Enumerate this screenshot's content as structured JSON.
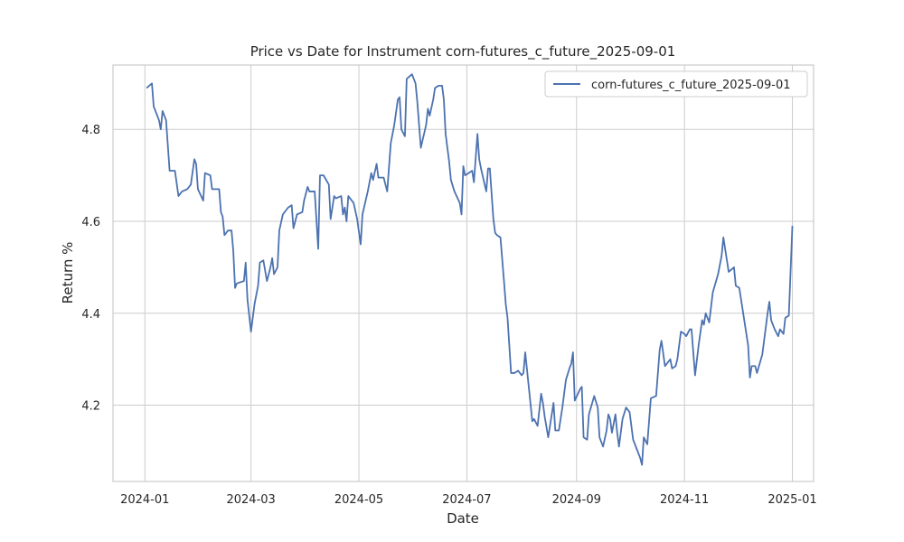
{
  "chart_data": {
    "type": "line",
    "title": "Price vs Date for Instrument corn-futures_c_future_2025-09-01",
    "xlabel": "Date",
    "ylabel": "Return %",
    "x_ticks": [
      "2024-01",
      "2024-03",
      "2024-05",
      "2024-07",
      "2024-09",
      "2024-11",
      "2025-01"
    ],
    "y_ticks": [
      "4.2",
      "4.4",
      "4.6",
      "4.8"
    ],
    "xlim": [
      "2023-12-14",
      "2025-01-13"
    ],
    "ylim": [
      4.034,
      4.94
    ],
    "grid": true,
    "legend_position": "top-right",
    "series": [
      {
        "name": "corn-futures_c_future_2025-09-01",
        "color": "#4c72b0",
        "points": [
          [
            "2024-01-02",
            4.89
          ],
          [
            "2024-01-05",
            4.9
          ],
          [
            "2024-01-06",
            4.85
          ],
          [
            "2024-01-09",
            4.82
          ],
          [
            "2024-01-10",
            4.8
          ],
          [
            "2024-01-11",
            4.84
          ],
          [
            "2024-01-13",
            4.82
          ],
          [
            "2024-01-15",
            4.71
          ],
          [
            "2024-01-18",
            4.71
          ],
          [
            "2024-01-20",
            4.655
          ],
          [
            "2024-01-22",
            4.665
          ],
          [
            "2024-01-25",
            4.67
          ],
          [
            "2024-01-27",
            4.68
          ],
          [
            "2024-01-29",
            4.735
          ],
          [
            "2024-01-30",
            4.725
          ],
          [
            "2024-01-31",
            4.67
          ],
          [
            "2024-02-03",
            4.645
          ],
          [
            "2024-02-04",
            4.705
          ],
          [
            "2024-02-07",
            4.7
          ],
          [
            "2024-02-08",
            4.67
          ],
          [
            "2024-02-12",
            4.67
          ],
          [
            "2024-02-13",
            4.62
          ],
          [
            "2024-02-14",
            4.61
          ],
          [
            "2024-02-15",
            4.57
          ],
          [
            "2024-02-17",
            4.58
          ],
          [
            "2024-02-19",
            4.58
          ],
          [
            "2024-02-20",
            4.535
          ],
          [
            "2024-02-21",
            4.455
          ],
          [
            "2024-02-22",
            4.465
          ],
          [
            "2024-02-26",
            4.47
          ],
          [
            "2024-02-27",
            4.51
          ],
          [
            "2024-02-28",
            4.43
          ],
          [
            "2024-03-01",
            4.36
          ],
          [
            "2024-03-03",
            4.42
          ],
          [
            "2024-03-05",
            4.46
          ],
          [
            "2024-03-06",
            4.51
          ],
          [
            "2024-03-08",
            4.515
          ],
          [
            "2024-03-10",
            4.47
          ],
          [
            "2024-03-12",
            4.5
          ],
          [
            "2024-03-13",
            4.52
          ],
          [
            "2024-03-14",
            4.485
          ],
          [
            "2024-03-16",
            4.5
          ],
          [
            "2024-03-17",
            4.58
          ],
          [
            "2024-03-19",
            4.615
          ],
          [
            "2024-03-22",
            4.63
          ],
          [
            "2024-03-24",
            4.635
          ],
          [
            "2024-03-25",
            4.585
          ],
          [
            "2024-03-27",
            4.615
          ],
          [
            "2024-03-30",
            4.62
          ],
          [
            "2024-03-31",
            4.645
          ],
          [
            "2024-04-02",
            4.675
          ],
          [
            "2024-04-03",
            4.665
          ],
          [
            "2024-04-06",
            4.665
          ],
          [
            "2024-04-08",
            4.54
          ],
          [
            "2024-04-09",
            4.7
          ],
          [
            "2024-04-11",
            4.7
          ],
          [
            "2024-04-14",
            4.68
          ],
          [
            "2024-04-15",
            4.605
          ],
          [
            "2024-04-17",
            4.655
          ],
          [
            "2024-04-18",
            4.65
          ],
          [
            "2024-04-21",
            4.655
          ],
          [
            "2024-04-22",
            4.615
          ],
          [
            "2024-04-23",
            4.63
          ],
          [
            "2024-04-24",
            4.6
          ],
          [
            "2024-04-25",
            4.655
          ],
          [
            "2024-04-28",
            4.64
          ],
          [
            "2024-04-30",
            4.605
          ],
          [
            "2024-05-02",
            4.55
          ],
          [
            "2024-05-03",
            4.615
          ],
          [
            "2024-05-06",
            4.665
          ],
          [
            "2024-05-08",
            4.705
          ],
          [
            "2024-05-09",
            4.69
          ],
          [
            "2024-05-11",
            4.725
          ],
          [
            "2024-05-12",
            4.695
          ],
          [
            "2024-05-15",
            4.695
          ],
          [
            "2024-05-17",
            4.665
          ],
          [
            "2024-05-19",
            4.77
          ],
          [
            "2024-05-21",
            4.81
          ],
          [
            "2024-05-23",
            4.865
          ],
          [
            "2024-05-24",
            4.87
          ],
          [
            "2024-05-25",
            4.8
          ],
          [
            "2024-05-27",
            4.785
          ],
          [
            "2024-05-28",
            4.91
          ],
          [
            "2024-05-31",
            4.92
          ],
          [
            "2024-06-02",
            4.9
          ],
          [
            "2024-06-03",
            4.86
          ],
          [
            "2024-06-05",
            4.76
          ],
          [
            "2024-06-08",
            4.81
          ],
          [
            "2024-06-09",
            4.845
          ],
          [
            "2024-06-10",
            4.83
          ],
          [
            "2024-06-12",
            4.865
          ],
          [
            "2024-06-13",
            4.89
          ],
          [
            "2024-06-15",
            4.895
          ],
          [
            "2024-06-17",
            4.895
          ],
          [
            "2024-06-18",
            4.865
          ],
          [
            "2024-06-19",
            4.79
          ],
          [
            "2024-06-21",
            4.73
          ],
          [
            "2024-06-22",
            4.69
          ],
          [
            "2024-06-24",
            4.665
          ],
          [
            "2024-06-27",
            4.64
          ],
          [
            "2024-06-28",
            4.615
          ],
          [
            "2024-06-29",
            4.72
          ],
          [
            "2024-06-30",
            4.7
          ],
          [
            "2024-07-02",
            4.705
          ],
          [
            "2024-07-04",
            4.71
          ],
          [
            "2024-07-05",
            4.685
          ],
          [
            "2024-07-07",
            4.79
          ],
          [
            "2024-07-08",
            4.735
          ],
          [
            "2024-07-09",
            4.715
          ],
          [
            "2024-07-12",
            4.665
          ],
          [
            "2024-07-13",
            4.715
          ],
          [
            "2024-07-14",
            4.715
          ],
          [
            "2024-07-16",
            4.605
          ],
          [
            "2024-07-17",
            4.575
          ],
          [
            "2024-07-18",
            4.57
          ],
          [
            "2024-07-20",
            4.565
          ],
          [
            "2024-07-22",
            4.47
          ],
          [
            "2024-07-23",
            4.42
          ],
          [
            "2024-07-24",
            4.39
          ],
          [
            "2024-07-26",
            4.27
          ],
          [
            "2024-07-28",
            4.27
          ],
          [
            "2024-07-30",
            4.275
          ],
          [
            "2024-08-01",
            4.265
          ],
          [
            "2024-08-02",
            4.27
          ],
          [
            "2024-08-03",
            4.315
          ],
          [
            "2024-08-05",
            4.24
          ],
          [
            "2024-08-07",
            4.165
          ],
          [
            "2024-08-08",
            4.17
          ],
          [
            "2024-08-10",
            4.155
          ],
          [
            "2024-08-12",
            4.225
          ],
          [
            "2024-08-13",
            4.205
          ],
          [
            "2024-08-14",
            4.175
          ],
          [
            "2024-08-16",
            4.13
          ],
          [
            "2024-08-19",
            4.205
          ],
          [
            "2024-08-20",
            4.145
          ],
          [
            "2024-08-22",
            4.145
          ],
          [
            "2024-08-24",
            4.195
          ],
          [
            "2024-08-26",
            4.255
          ],
          [
            "2024-08-28",
            4.28
          ],
          [
            "2024-08-29",
            4.29
          ],
          [
            "2024-08-30",
            4.315
          ],
          [
            "2024-08-31",
            4.21
          ],
          [
            "2024-09-03",
            4.235
          ],
          [
            "2024-09-04",
            4.24
          ],
          [
            "2024-09-05",
            4.13
          ],
          [
            "2024-09-07",
            4.125
          ],
          [
            "2024-09-08",
            4.18
          ],
          [
            "2024-09-11",
            4.22
          ],
          [
            "2024-09-13",
            4.195
          ],
          [
            "2024-09-14",
            4.13
          ],
          [
            "2024-09-16",
            4.11
          ],
          [
            "2024-09-18",
            4.145
          ],
          [
            "2024-09-19",
            4.18
          ],
          [
            "2024-09-20",
            4.17
          ],
          [
            "2024-09-21",
            4.14
          ],
          [
            "2024-09-23",
            4.18
          ],
          [
            "2024-09-24",
            4.14
          ],
          [
            "2024-09-25",
            4.11
          ],
          [
            "2024-09-27",
            4.17
          ],
          [
            "2024-09-29",
            4.195
          ],
          [
            "2024-10-01",
            4.185
          ],
          [
            "2024-10-03",
            4.125
          ],
          [
            "2024-10-05",
            4.105
          ],
          [
            "2024-10-07",
            4.085
          ],
          [
            "2024-10-08",
            4.07
          ],
          [
            "2024-10-09",
            4.13
          ],
          [
            "2024-10-11",
            4.115
          ],
          [
            "2024-10-13",
            4.215
          ],
          [
            "2024-10-16",
            4.22
          ],
          [
            "2024-10-18",
            4.32
          ],
          [
            "2024-10-19",
            4.34
          ],
          [
            "2024-10-21",
            4.285
          ],
          [
            "2024-10-24",
            4.3
          ],
          [
            "2024-10-25",
            4.28
          ],
          [
            "2024-10-27",
            4.285
          ],
          [
            "2024-10-28",
            4.3
          ],
          [
            "2024-10-30",
            4.36
          ],
          [
            "2024-11-01",
            4.355
          ],
          [
            "2024-11-02",
            4.35
          ],
          [
            "2024-11-04",
            4.365
          ],
          [
            "2024-11-05",
            4.365
          ],
          [
            "2024-11-07",
            4.265
          ],
          [
            "2024-11-09",
            4.33
          ],
          [
            "2024-11-11",
            4.385
          ],
          [
            "2024-11-12",
            4.375
          ],
          [
            "2024-11-13",
            4.4
          ],
          [
            "2024-11-15",
            4.38
          ],
          [
            "2024-11-17",
            4.445
          ],
          [
            "2024-11-20",
            4.485
          ],
          [
            "2024-11-22",
            4.525
          ],
          [
            "2024-11-23",
            4.565
          ],
          [
            "2024-11-26",
            4.49
          ],
          [
            "2024-11-29",
            4.5
          ],
          [
            "2024-11-30",
            4.46
          ],
          [
            "2024-12-02",
            4.455
          ],
          [
            "2024-12-05",
            4.38
          ],
          [
            "2024-12-07",
            4.33
          ],
          [
            "2024-12-08",
            4.26
          ],
          [
            "2024-12-09",
            4.285
          ],
          [
            "2024-12-11",
            4.285
          ],
          [
            "2024-12-12",
            4.27
          ],
          [
            "2024-12-15",
            4.31
          ],
          [
            "2024-12-18",
            4.4
          ],
          [
            "2024-12-19",
            4.425
          ],
          [
            "2024-12-20",
            4.385
          ],
          [
            "2024-12-22",
            4.365
          ],
          [
            "2024-12-24",
            4.35
          ],
          [
            "2024-12-25",
            4.365
          ],
          [
            "2024-12-27",
            4.355
          ],
          [
            "2024-12-28",
            4.39
          ],
          [
            "2024-12-30",
            4.395
          ],
          [
            "2025-01-01",
            4.59
          ]
        ]
      }
    ]
  }
}
